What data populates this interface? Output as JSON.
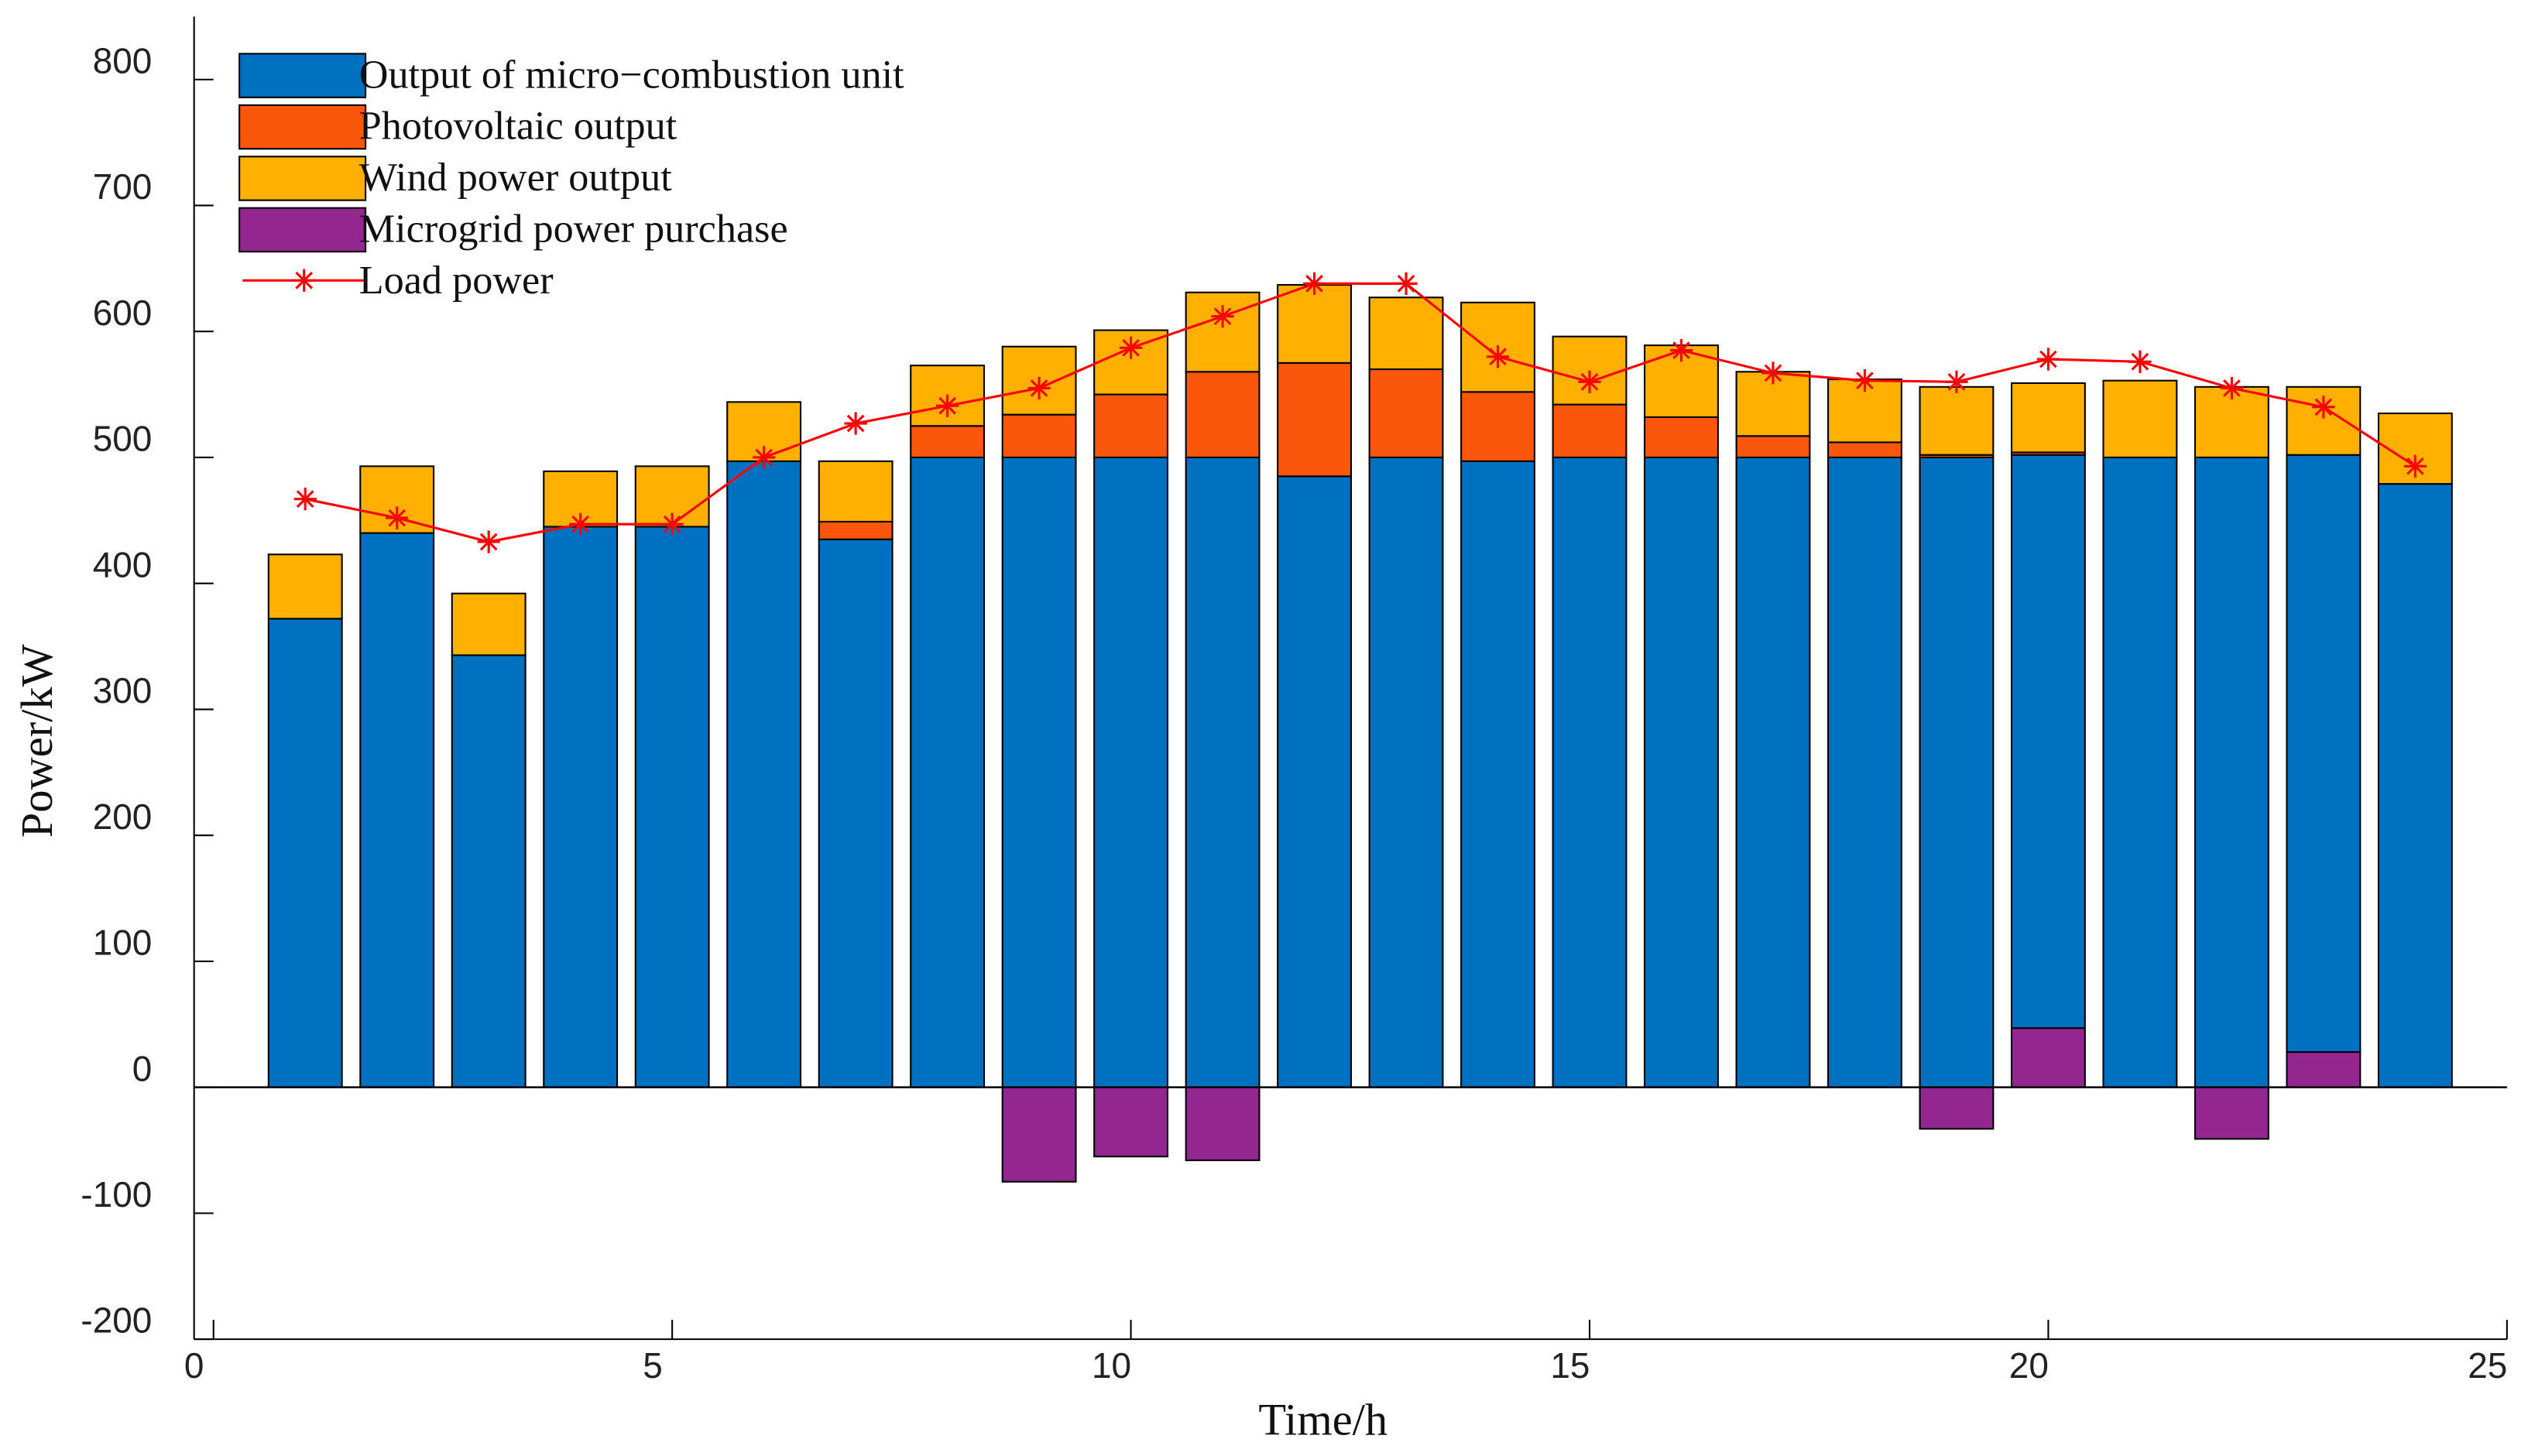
{
  "chart_data": {
    "type": "bar",
    "stacked": true,
    "x_label": "Time/h",
    "y_label": "Power/kW",
    "x": [
      1,
      2,
      3,
      4,
      5,
      6,
      7,
      8,
      9,
      10,
      11,
      12,
      13,
      14,
      15,
      16,
      17,
      18,
      19,
      20,
      21,
      22,
      23,
      24
    ],
    "series": [
      {
        "name": "Output of micro−combustion unit",
        "color": "#0070c0",
        "type": "bar",
        "values": [
          372,
          440,
          343,
          445,
          445,
          497,
          435,
          500,
          500,
          500,
          500,
          485,
          500,
          497,
          500,
          500,
          500,
          500,
          500,
          455,
          500,
          500,
          474,
          479
        ]
      },
      {
        "name": "Photovoltaic output",
        "color": "#fa560c",
        "type": "bar",
        "values": [
          0,
          0,
          0,
          0,
          0,
          0,
          14,
          25,
          34,
          50,
          68,
          90,
          70,
          55,
          42,
          32,
          17,
          12,
          2,
          2,
          0,
          0,
          0,
          0
        ]
      },
      {
        "name": "Wind power output",
        "color": "#ffb000",
        "type": "bar",
        "values": [
          51,
          53,
          49,
          44,
          48,
          47,
          48,
          48,
          54,
          51,
          63,
          62,
          57,
          71,
          54,
          57,
          51,
          50,
          54,
          55,
          61,
          56,
          54,
          56
        ]
      },
      {
        "name": "Microgrid power purchase",
        "color": "#93278f",
        "type": "bar",
        "values": [
          0,
          0,
          0,
          0,
          0,
          0,
          0,
          0,
          -75,
          -55,
          -58,
          0,
          0,
          0,
          0,
          0,
          0,
          0,
          -33,
          47,
          0,
          -41,
          28,
          0
        ]
      },
      {
        "name": "Load power",
        "color": "#ff0000",
        "type": "line",
        "values": [
          467,
          452,
          433,
          447,
          447,
          500,
          527,
          541,
          555,
          587,
          612,
          638,
          638,
          580,
          560,
          585,
          567,
          561,
          560,
          578,
          576,
          555,
          540,
          493
        ]
      }
    ],
    "xlim": [
      0,
      25
    ],
    "xticks": [
      0,
      5,
      10,
      15,
      20,
      25
    ],
    "ylim": [
      -200,
      850
    ],
    "yticks": [
      -200,
      -100,
      0,
      100,
      200,
      300,
      400,
      500,
      600,
      700,
      800
    ],
    "legend": "upper-left"
  }
}
